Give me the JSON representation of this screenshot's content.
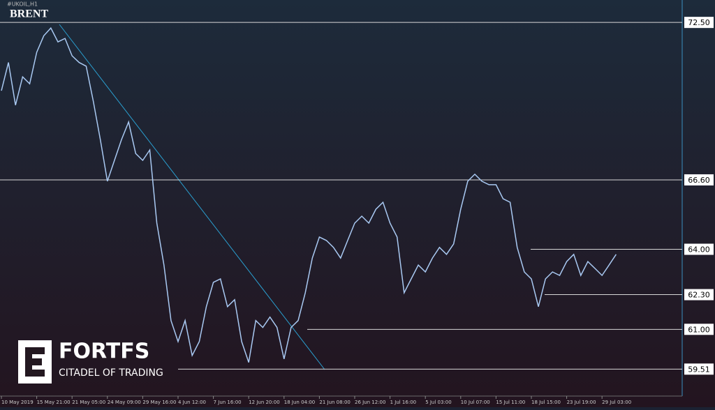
{
  "chart_data": {
    "type": "line",
    "symbol": "#UKOIL,H1",
    "title": "BRENT",
    "brand": "FORTFS",
    "tagline": "CITADEL OF TRADING",
    "xlim": [
      0,
      96
    ],
    "ylim": [
      58.5,
      73.34
    ],
    "xticks": [
      {
        "value": 0,
        "label": "10 May 2019"
      },
      {
        "value": 5,
        "label": "15 May 21:00"
      },
      {
        "value": 10,
        "label": "21 May 05:00"
      },
      {
        "value": 15,
        "label": "24 May 09:00"
      },
      {
        "value": 20,
        "label": "29 May 16:00"
      },
      {
        "value": 25,
        "label": "4 Jun 12:00"
      },
      {
        "value": 30,
        "label": "7 Jun 16:00"
      },
      {
        "value": 35,
        "label": "12 Jun 20:00"
      },
      {
        "value": 40,
        "label": "18 Jun 04:00"
      },
      {
        "value": 45,
        "label": "21 Jun 08:00"
      },
      {
        "value": 50,
        "label": "26 Jun 12:00"
      },
      {
        "value": 55,
        "label": "1 Jul 16:00"
      },
      {
        "value": 60,
        "label": "5 Jul 03:00"
      },
      {
        "value": 65,
        "label": "10 Jul 07:00"
      },
      {
        "value": 70,
        "label": "15 Jul 11:00"
      },
      {
        "value": 75,
        "label": "18 Jul 15:00"
      },
      {
        "value": 80,
        "label": "23 Jul 19:00"
      },
      {
        "value": 85,
        "label": "29 Jul 03:00"
      }
    ],
    "yticks": [
      {
        "value": 72.5,
        "label": "72.50"
      },
      {
        "value": 66.6,
        "label": "66.60"
      },
      {
        "value": 64,
        "label": "64.00"
      },
      {
        "value": 62.3,
        "label": "62.30"
      },
      {
        "value": 61,
        "label": "61.00"
      },
      59.51
    ],
    "series": [
      {
        "color": "#a9c9f2",
        "values": [
          69.94,
          71.0,
          69.4,
          70.46,
          70.2,
          71.38,
          72.0,
          72.29,
          71.77,
          71.9,
          71.25,
          71.0,
          70.86,
          69.55,
          68.11,
          66.55,
          67.33,
          68.11,
          68.77,
          67.59,
          67.33,
          67.72,
          64.98,
          63.41,
          61.33,
          60.54,
          61.33,
          60.02,
          60.54,
          61.85,
          62.76,
          62.89,
          61.85,
          62.11,
          60.54,
          59.76,
          61.33,
          61.07,
          61.46,
          61.07,
          59.89,
          61.07,
          61.33,
          62.37,
          63.67,
          64.46,
          64.33,
          64.07,
          63.67,
          64.33,
          64.98,
          65.24,
          64.98,
          65.5,
          65.76,
          64.98,
          64.46,
          62.37,
          62.89,
          63.41,
          63.15,
          63.67,
          64.07,
          63.81,
          64.2,
          65.5,
          66.55,
          66.81,
          66.55,
          66.42,
          66.42,
          65.89,
          65.76,
          64.07,
          63.15,
          62.89,
          61.85,
          62.89,
          63.15,
          63.02,
          63.54,
          63.81,
          63.02,
          63.54,
          63.28,
          63.02,
          63.41,
          63.81
        ]
      }
    ]
  }
}
